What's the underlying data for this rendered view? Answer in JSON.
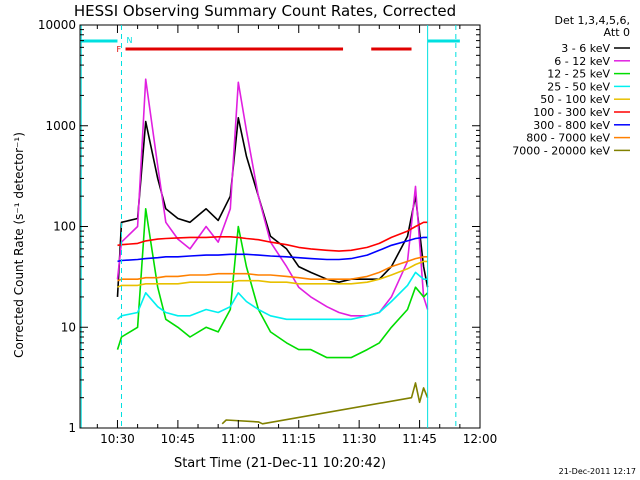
{
  "chart_data": {
    "type": "line",
    "title": "HESSI Observing Summary Count Rates, Corrected",
    "xlabel": "Start Time (21-Dec-11 10:20:42)",
    "ylabel": "Corrected Count Rate (s⁻¹ detector⁻¹)",
    "yscale": "log",
    "ylim": [
      1,
      10000
    ],
    "xlim": [
      "10:20:42",
      "12:00:00"
    ],
    "x_ticks": [
      "10:30",
      "10:45",
      "11:00",
      "11:15",
      "11:30",
      "11:45",
      "12:00"
    ],
    "y_ticks": [
      "1",
      "10",
      "100",
      "1000",
      "10000"
    ],
    "legend_header": [
      "Det 1,3,4,5,6,",
      "Att 0"
    ],
    "legend_position": "right",
    "footer": "21-Dec-2011 12:17",
    "flags": {
      "F_label": "F",
      "N_label": "N",
      "flag_color": "#e00000",
      "night_color": "#00e0e0",
      "red_segments": [
        [
          "10:32",
          "11:26"
        ],
        [
          "11:33",
          "11:43"
        ]
      ],
      "cyan_segments": [
        [
          "10:21",
          "10:30"
        ],
        [
          "11:47",
          "11:55"
        ]
      ],
      "vlines_solid": [
        "10:21",
        "11:47"
      ],
      "vlines_dashed": [
        "10:31",
        "11:54"
      ]
    },
    "series": [
      {
        "name": "3 - 6 keV",
        "color": "#000000",
        "x": [
          "10:30",
          "10:31",
          "10:35",
          "10:37",
          "10:40",
          "10:42",
          "10:45",
          "10:48",
          "10:52",
          "10:55",
          "10:58",
          "11:00",
          "11:02",
          "11:05",
          "11:08",
          "11:12",
          "11:15",
          "11:18",
          "11:22",
          "11:25",
          "11:28",
          "11:32",
          "11:35",
          "11:38",
          "11:42",
          "11:44",
          "11:46",
          "11:47"
        ],
        "y": [
          20,
          110,
          120,
          1100,
          300,
          150,
          120,
          110,
          150,
          115,
          200,
          1200,
          500,
          200,
          80,
          60,
          40,
          35,
          30,
          28,
          30,
          30,
          30,
          40,
          80,
          200,
          40,
          25
        ]
      },
      {
        "name": "6 - 12 keV",
        "color": "#e020e0",
        "x": [
          "10:30",
          "10:31",
          "10:35",
          "10:37",
          "10:40",
          "10:42",
          "10:45",
          "10:48",
          "10:52",
          "10:55",
          "10:58",
          "11:00",
          "11:02",
          "11:05",
          "11:08",
          "11:12",
          "11:15",
          "11:18",
          "11:22",
          "11:25",
          "11:28",
          "11:32",
          "11:35",
          "11:38",
          "11:42",
          "11:44",
          "11:46",
          "11:47"
        ],
        "y": [
          30,
          70,
          100,
          2900,
          400,
          110,
          75,
          60,
          100,
          70,
          150,
          2700,
          900,
          200,
          70,
          40,
          25,
          20,
          16,
          14,
          13,
          13,
          14,
          20,
          45,
          250,
          20,
          15
        ]
      },
      {
        "name": "12 - 25 keV",
        "color": "#00dd00",
        "x": [
          "10:30",
          "10:31",
          "10:35",
          "10:37",
          "10:40",
          "10:42",
          "10:45",
          "10:48",
          "10:52",
          "10:55",
          "10:58",
          "11:00",
          "11:02",
          "11:05",
          "11:08",
          "11:12",
          "11:15",
          "11:18",
          "11:22",
          "11:25",
          "11:28",
          "11:32",
          "11:35",
          "11:38",
          "11:42",
          "11:44",
          "11:46",
          "11:47"
        ],
        "y": [
          6,
          8,
          10,
          150,
          25,
          12,
          10,
          8,
          10,
          9,
          15,
          100,
          40,
          15,
          9,
          7,
          6,
          6,
          5,
          5,
          5,
          6,
          7,
          10,
          15,
          25,
          20,
          22
        ]
      },
      {
        "name": "25 - 50 keV",
        "color": "#00f0f0",
        "x": [
          "10:30",
          "10:31",
          "10:35",
          "10:37",
          "10:40",
          "10:42",
          "10:45",
          "10:48",
          "10:52",
          "10:55",
          "10:58",
          "11:00",
          "11:02",
          "11:05",
          "11:08",
          "11:12",
          "11:15",
          "11:18",
          "11:22",
          "11:25",
          "11:28",
          "11:32",
          "11:35",
          "11:38",
          "11:42",
          "11:44",
          "11:46",
          "11:47"
        ],
        "y": [
          12,
          13,
          14,
          22,
          16,
          14,
          13,
          13,
          15,
          14,
          16,
          22,
          18,
          15,
          13,
          12,
          12,
          12,
          12,
          12,
          12,
          13,
          14,
          18,
          26,
          35,
          30,
          30
        ]
      },
      {
        "name": "50 - 100 keV",
        "color": "#e8c000",
        "x": [
          "10:30",
          "10:31",
          "10:35",
          "10:37",
          "10:40",
          "10:42",
          "10:45",
          "10:48",
          "10:52",
          "10:55",
          "10:58",
          "11:00",
          "11:02",
          "11:05",
          "11:08",
          "11:12",
          "11:15",
          "11:18",
          "11:22",
          "11:25",
          "11:28",
          "11:32",
          "11:35",
          "11:38",
          "11:42",
          "11:44",
          "11:46",
          "11:47"
        ],
        "y": [
          25,
          26,
          26,
          27,
          27,
          27,
          27,
          28,
          28,
          28,
          28,
          29,
          29,
          29,
          28,
          28,
          27,
          27,
          27,
          27,
          27,
          28,
          30,
          33,
          38,
          42,
          45,
          45
        ]
      },
      {
        "name": "100 - 300 keV",
        "color": "#ff0000",
        "x": [
          "10:30",
          "10:31",
          "10:35",
          "10:37",
          "10:40",
          "10:42",
          "10:45",
          "10:48",
          "10:52",
          "10:55",
          "10:58",
          "11:00",
          "11:02",
          "11:05",
          "11:08",
          "11:12",
          "11:15",
          "11:18",
          "11:22",
          "11:25",
          "11:28",
          "11:32",
          "11:35",
          "11:38",
          "11:42",
          "11:44",
          "11:46",
          "11:47"
        ],
        "y": [
          65,
          66,
          68,
          72,
          75,
          76,
          77,
          78,
          78,
          79,
          79,
          78,
          76,
          74,
          70,
          66,
          62,
          60,
          58,
          57,
          58,
          62,
          68,
          78,
          90,
          100,
          110,
          110
        ]
      },
      {
        "name": "300 - 800 keV",
        "color": "#0000ff",
        "x": [
          "10:30",
          "10:31",
          "10:35",
          "10:37",
          "10:40",
          "10:42",
          "10:45",
          "10:48",
          "10:52",
          "10:55",
          "10:58",
          "11:00",
          "11:02",
          "11:05",
          "11:08",
          "11:12",
          "11:15",
          "11:18",
          "11:22",
          "11:25",
          "11:28",
          "11:32",
          "11:35",
          "11:38",
          "11:42",
          "11:44",
          "11:46",
          "11:47"
        ],
        "y": [
          45,
          46,
          47,
          48,
          49,
          50,
          50,
          51,
          52,
          52,
          53,
          53,
          53,
          52,
          51,
          50,
          49,
          48,
          47,
          47,
          48,
          52,
          58,
          65,
          72,
          76,
          78,
          78
        ]
      },
      {
        "name": "800 - 7000 keV",
        "color": "#ff8000",
        "x": [
          "10:30",
          "10:31",
          "10:35",
          "10:37",
          "10:40",
          "10:42",
          "10:45",
          "10:48",
          "10:52",
          "10:55",
          "10:58",
          "11:00",
          "11:02",
          "11:05",
          "11:08",
          "11:12",
          "11:15",
          "11:18",
          "11:22",
          "11:25",
          "11:28",
          "11:32",
          "11:35",
          "11:38",
          "11:42",
          "11:44",
          "11:46",
          "11:47"
        ],
        "y": [
          29,
          30,
          30,
          31,
          31,
          32,
          32,
          33,
          33,
          34,
          34,
          34,
          34,
          33,
          33,
          32,
          31,
          30,
          30,
          30,
          30,
          32,
          35,
          40,
          45,
          48,
          50,
          50
        ]
      },
      {
        "name": "7000 - 20000 keV",
        "color": "#808000",
        "x": [
          "10:56",
          "10:57",
          "11:05",
          "11:06",
          "11:43",
          "11:44",
          "11:45",
          "11:46",
          "11:47"
        ],
        "y": [
          1.1,
          1.2,
          1.15,
          1.1,
          2.0,
          2.8,
          1.8,
          2.5,
          2.0
        ]
      }
    ]
  }
}
